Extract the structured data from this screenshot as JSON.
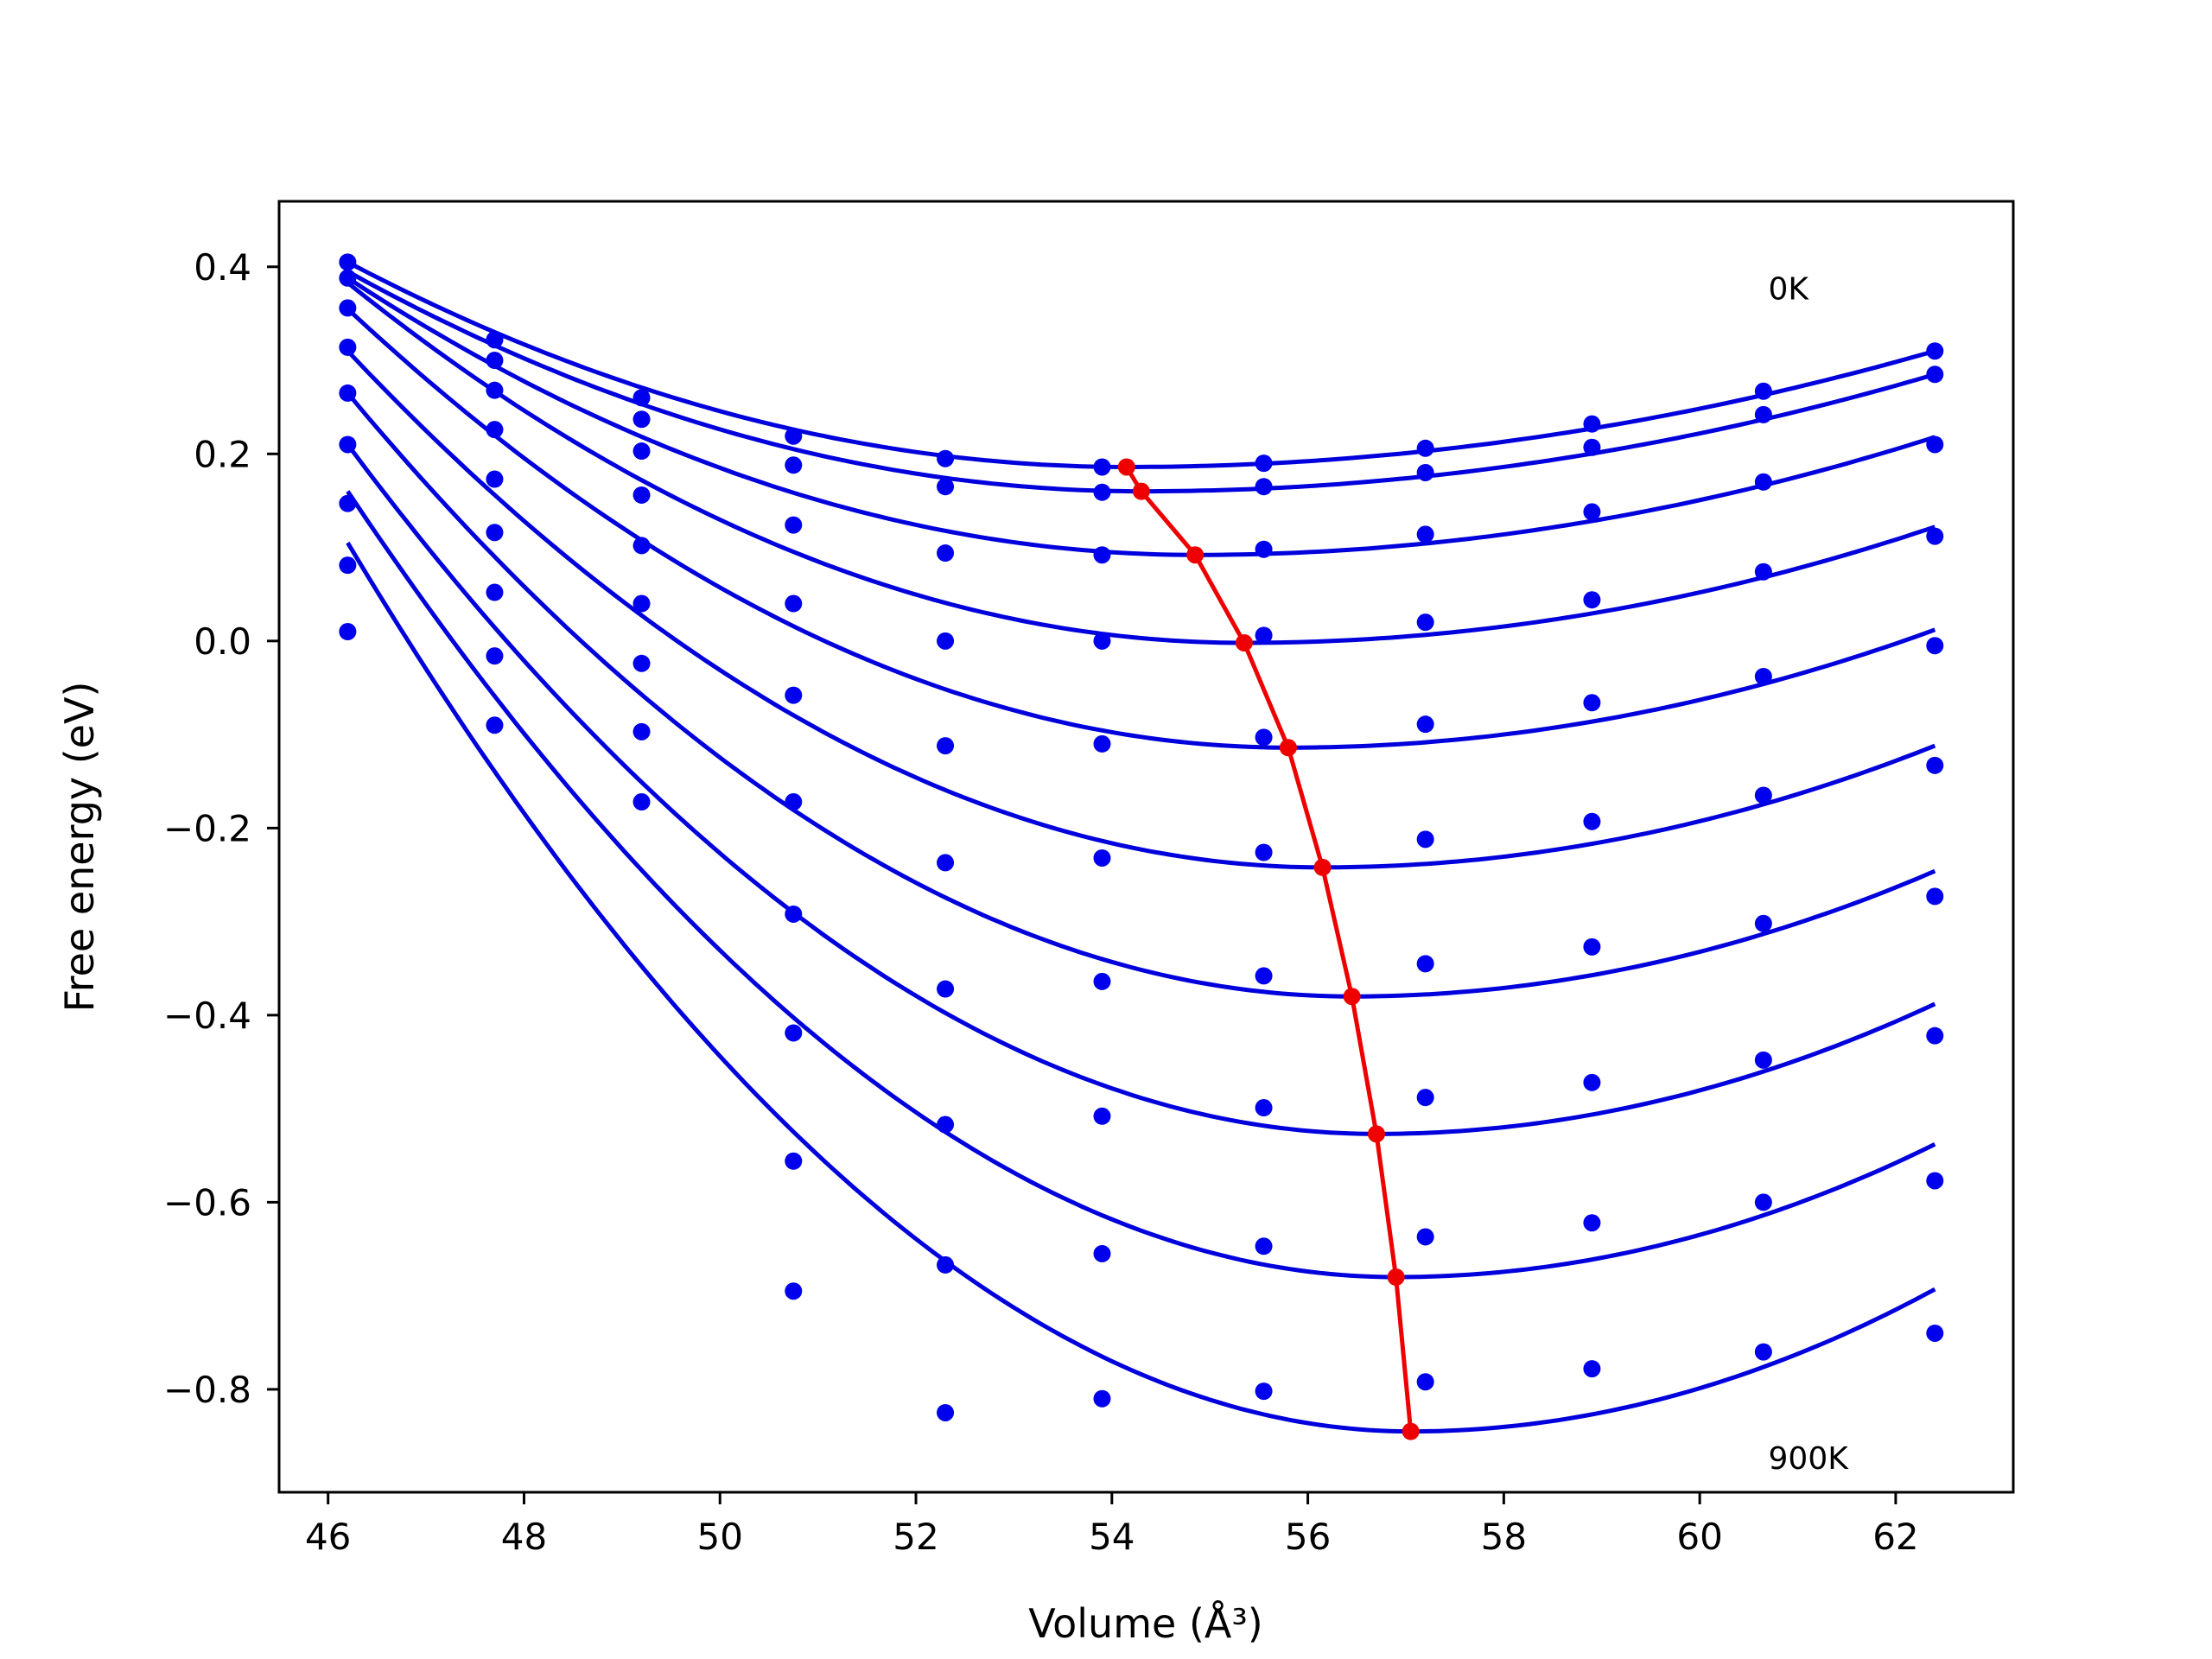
{
  "chart_data": {
    "type": "scatter",
    "title": "",
    "xlabel": "Volume (Å³)",
    "ylabel": "Free energy (eV)",
    "xlim": [
      45.5,
      63.2
    ],
    "ylim": [
      -0.91,
      0.47
    ],
    "xticks": [
      46,
      48,
      50,
      52,
      54,
      56,
      58,
      60,
      62
    ],
    "yticks": [
      0.4,
      0.2,
      0.0,
      -0.2,
      -0.4,
      -0.6,
      -0.8
    ],
    "xtick_labels": [
      "46",
      "48",
      "50",
      "52",
      "54",
      "56",
      "58",
      "60",
      "62"
    ],
    "ytick_labels": [
      "0.4",
      "0.2",
      "0.0",
      "−0.2",
      "−0.4",
      "−0.6",
      "−0.8"
    ],
    "grid": false,
    "colors": {
      "points": "#0000ee",
      "fits": "#0000dd",
      "minimum": "#ee0000"
    },
    "annotations": [
      {
        "text": "0K",
        "x": 60.7,
        "y": 0.365
      },
      {
        "text": "900K",
        "x": 60.7,
        "y": -0.885
      }
    ],
    "x": [
      46.2,
      47.7,
      49.2,
      50.75,
      52.3,
      53.9,
      55.55,
      57.2,
      58.9,
      60.65,
      62.4
    ],
    "fit_x": [
      46.2,
      62.4
    ],
    "series": [
      {
        "values": [
          0.405,
          0.322,
          0.26,
          0.219,
          0.195,
          0.186,
          0.19,
          0.206,
          0.232,
          0.267,
          0.31
        ],
        "fit": {
          "vmin": 54.15,
          "emin": 0.186,
          "e_start": 0.405,
          "e_end": 0.31
        }
      },
      {
        "values": [
          0.388,
          0.3,
          0.237,
          0.188,
          0.165,
          0.159,
          0.165,
          0.18,
          0.207,
          0.242,
          0.285
        ],
        "fit": {
          "vmin": 54.3,
          "emin": 0.16,
          "e_start": 0.395,
          "e_end": 0.285
        }
      },
      {
        "values": [
          0.356,
          0.268,
          0.203,
          0.124,
          0.094,
          0.092,
          0.098,
          0.114,
          0.138,
          0.17,
          0.21
        ],
        "fit": {
          "vmin": 54.85,
          "emin": 0.092,
          "e_start": 0.388,
          "e_end": 0.218
        }
      },
      {
        "values": [
          0.314,
          0.226,
          0.156,
          0.04,
          0.0,
          0.0,
          0.006,
          0.02,
          0.044,
          0.074,
          0.112
        ],
        "fit": {
          "vmin": 55.35,
          "emin": -0.002,
          "e_start": 0.383,
          "e_end": 0.122
        }
      },
      {
        "values": [
          0.265,
          0.173,
          0.102,
          -0.058,
          -0.112,
          -0.11,
          -0.103,
          -0.089,
          -0.066,
          -0.038,
          -0.005
        ],
        "fit": {
          "vmin": 55.8,
          "emin": -0.114,
          "e_start": 0.355,
          "e_end": 0.012
        }
      },
      {
        "values": [
          0.21,
          0.116,
          0.04,
          -0.172,
          -0.237,
          -0.232,
          -0.226,
          -0.212,
          -0.193,
          -0.165,
          -0.133
        ],
        "fit": {
          "vmin": 56.15,
          "emin": -0.242,
          "e_start": 0.31,
          "e_end": -0.112
        }
      },
      {
        "values": [
          0.147,
          0.052,
          -0.024,
          -0.292,
          -0.372,
          -0.364,
          -0.358,
          -0.345,
          -0.327,
          -0.302,
          -0.273
        ],
        "fit": {
          "vmin": 56.45,
          "emin": -0.38,
          "e_start": 0.265,
          "e_end": -0.246
        }
      },
      {
        "values": [
          0.081,
          -0.016,
          -0.097,
          -0.419,
          -0.517,
          -0.508,
          -0.499,
          -0.488,
          -0.472,
          -0.448,
          -0.422
        ],
        "fit": {
          "vmin": 56.7,
          "emin": -0.527,
          "e_start": 0.21,
          "e_end": -0.388
        }
      },
      {
        "values": [
          0.01,
          -0.09,
          -0.172,
          -0.556,
          -0.667,
          -0.655,
          -0.647,
          -0.637,
          -0.622,
          -0.6,
          -0.577
        ],
        "fit": {
          "vmin": 56.9,
          "emin": -0.68,
          "e_start": 0.16,
          "e_end": -0.538
        }
      },
      {
        "values": [
          null,
          null,
          null,
          -0.695,
          -0.825,
          -0.81,
          -0.802,
          -0.792,
          -0.778,
          -0.76,
          -0.74
        ],
        "fit": {
          "vmin": 57.05,
          "emin": -0.845,
          "e_start": 0.105,
          "e_end": -0.693
        }
      }
    ],
    "minimum_line": {
      "x": [
        54.15,
        54.3,
        54.85,
        55.35,
        55.8,
        56.15,
        56.45,
        56.7,
        56.9,
        57.05
      ],
      "y": [
        0.186,
        0.16,
        0.092,
        -0.002,
        -0.114,
        -0.242,
        -0.38,
        -0.527,
        -0.68,
        -0.845
      ]
    }
  }
}
